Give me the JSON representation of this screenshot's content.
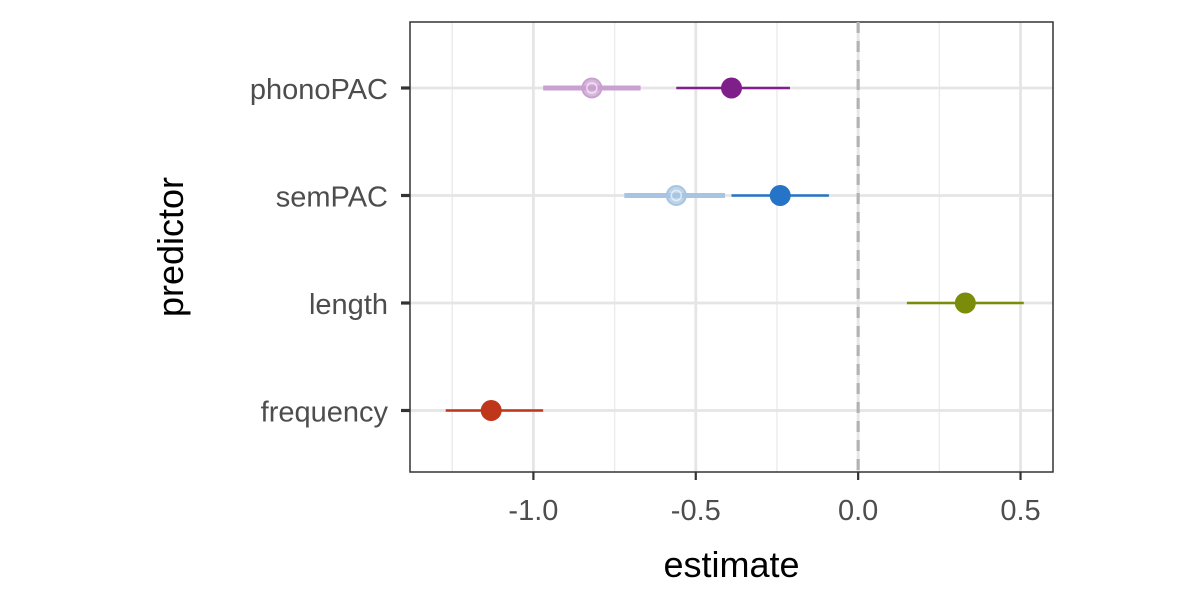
{
  "chart_data": {
    "type": "scatter",
    "subtype": "coefficient-plot",
    "title": "",
    "xlabel": "estimate",
    "ylabel": "predictor",
    "xlim": [
      -1.38,
      0.6
    ],
    "x_ticks": [
      -1.0,
      -0.5,
      0.0,
      0.5
    ],
    "x_tick_labels": [
      "-1.0",
      "-0.5",
      "0.0",
      "0.5"
    ],
    "y_categories": [
      "phonoPAC",
      "semPAC",
      "length",
      "frequency"
    ],
    "reference_line": {
      "x": 0.0,
      "style": "dashed",
      "color": "#b3b3b3"
    },
    "grid": true,
    "legend": "none",
    "points": [
      {
        "predictor": "phonoPAC",
        "estimate": -0.82,
        "low": -0.97,
        "high": -0.67,
        "color": "#c9a0d0",
        "faded": true
      },
      {
        "predictor": "phonoPAC",
        "estimate": -0.39,
        "low": -0.56,
        "high": -0.21,
        "color": "#7f1f8a",
        "faded": false
      },
      {
        "predictor": "semPAC",
        "estimate": -0.56,
        "low": -0.72,
        "high": -0.41,
        "color": "#a7c5e3",
        "faded": true
      },
      {
        "predictor": "semPAC",
        "estimate": -0.24,
        "low": -0.39,
        "high": -0.09,
        "color": "#2574c8",
        "faded": false
      },
      {
        "predictor": "length",
        "estimate": 0.33,
        "low": 0.15,
        "high": 0.51,
        "color": "#7a8c0a",
        "faded": false
      },
      {
        "predictor": "frequency",
        "estimate": -1.13,
        "low": -1.27,
        "high": -0.97,
        "color": "#c0361a",
        "faded": false
      }
    ]
  }
}
